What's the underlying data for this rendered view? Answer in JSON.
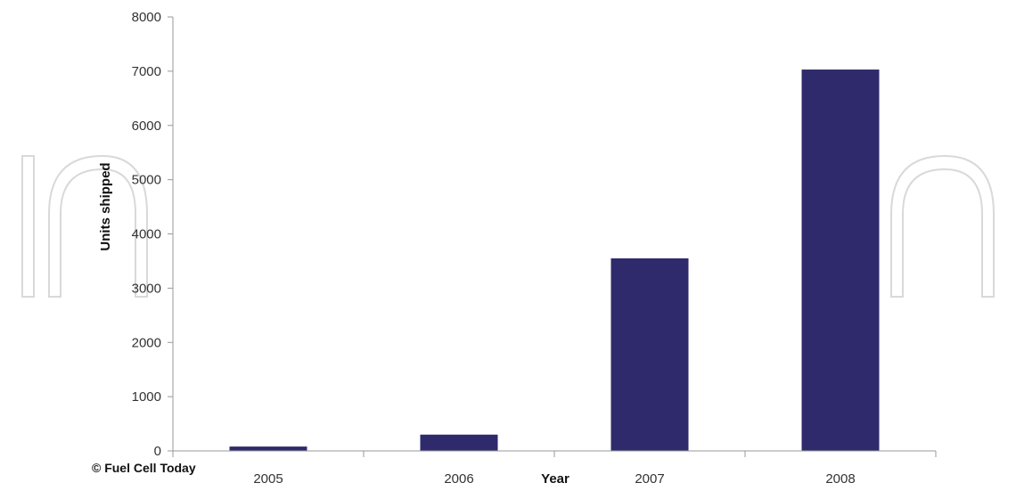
{
  "chart_data": {
    "type": "bar",
    "categories": [
      "2005",
      "2006",
      "2007",
      "2008"
    ],
    "values": [
      80,
      300,
      3550,
      7030
    ],
    "xlabel": "Year",
    "ylabel": "Units shipped",
    "ylim": [
      0,
      8000
    ],
    "yticks": [
      "0",
      "1000",
      "2000",
      "3000",
      "4000",
      "5000",
      "6000",
      "7000",
      "8000"
    ],
    "grid": false,
    "legend": "none",
    "bar_color": "#2e2a6b",
    "axis_color": "#999999",
    "watermark_color": "#d9d9d9"
  },
  "source_credit": "© Fuel Cell Today"
}
